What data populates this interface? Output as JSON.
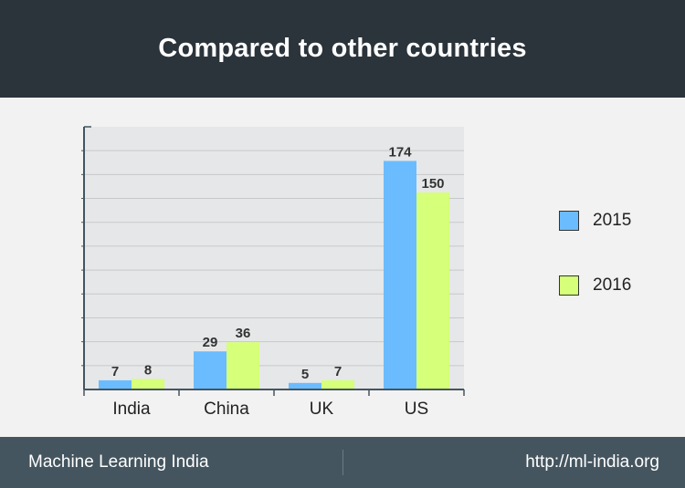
{
  "header": {
    "title": "Compared to other countries"
  },
  "footer": {
    "left_text": "Machine Learning India",
    "right_text": "http://ml-india.org"
  },
  "colors": {
    "header_bg": "#2b333b",
    "footer_bg": "#44555f",
    "series_2015": "#6bbcff",
    "series_2016": "#d6ff7a",
    "plot_bg": "#e6e7e8"
  },
  "chart_data": {
    "type": "bar",
    "title": "Compared to other countries",
    "categories": [
      "India",
      "China",
      "UK",
      "US"
    ],
    "series": [
      {
        "name": "2015",
        "values": [
          7,
          29,
          5,
          174
        ],
        "color": "#6bbcff"
      },
      {
        "name": "2016",
        "values": [
          8,
          36,
          7,
          150
        ],
        "color": "#d6ff7a"
      }
    ],
    "ylim": [
      0,
      200
    ],
    "grid": true,
    "legend_position": "right",
    "data_labels": true
  }
}
